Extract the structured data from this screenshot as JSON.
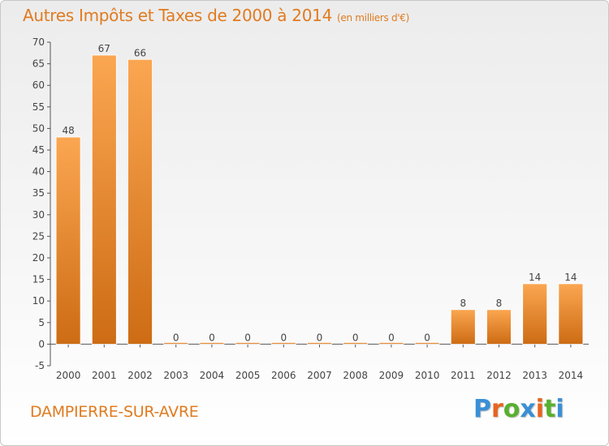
{
  "title": "Autres Impôts et Taxes de 2000 à 2014",
  "unit": "(en milliers d'€)",
  "commune": "DAMPIERRE-SUR-AVRE",
  "brand": {
    "text": "Proxiti",
    "colors": [
      "#3a8fd6",
      "#e8641e",
      "#58b030",
      "#3a8fd6",
      "#e8641e",
      "#58b030",
      "#3a8fd6"
    ]
  },
  "colors": {
    "bar_light": "#fba651",
    "bar_dark": "#cd6c14",
    "title": "#e07b20"
  },
  "chart_data": {
    "type": "bar",
    "title": "Autres Impôts et Taxes de 2000 à 2014",
    "xlabel": "",
    "ylabel": "",
    "categories": [
      "2000",
      "2001",
      "2002",
      "2003",
      "2004",
      "2005",
      "2006",
      "2007",
      "2008",
      "2009",
      "2010",
      "2011",
      "2012",
      "2013",
      "2014"
    ],
    "values": [
      48,
      67,
      66,
      0,
      0,
      0,
      0,
      0,
      0,
      0,
      0,
      8,
      8,
      14,
      14
    ],
    "ylim": [
      -5,
      70
    ],
    "yticks": [
      -5,
      0,
      5,
      10,
      15,
      20,
      25,
      30,
      35,
      40,
      45,
      50,
      55,
      60,
      65,
      70
    ],
    "grid": false,
    "legend": "none"
  }
}
